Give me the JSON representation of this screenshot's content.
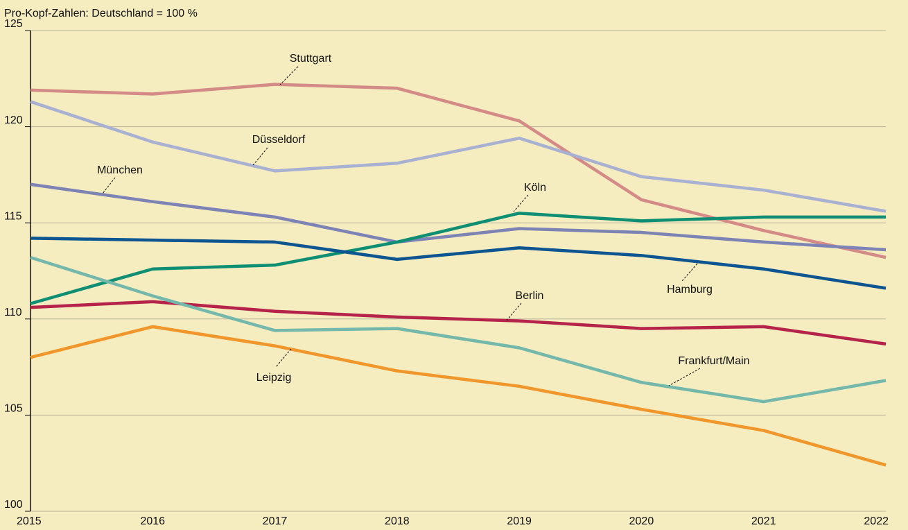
{
  "chart_data": {
    "type": "line",
    "title": "Pro-Kopf-Zahlen: Deutschland = 100 %",
    "categories": [
      "2015",
      "2016",
      "2017",
      "2018",
      "2019",
      "2020",
      "2021",
      "2022"
    ],
    "ylim": [
      100,
      125
    ],
    "yticks": [
      100,
      105,
      110,
      115,
      120,
      125
    ],
    "grid": true,
    "series": [
      {
        "name": "Stuttgart",
        "color": "#d48a87",
        "values": [
          121.9,
          121.7,
          122.2,
          122.0,
          120.3,
          116.2,
          114.6,
          113.2
        ]
      },
      {
        "name": "Düsseldorf",
        "color": "#a9b1d3",
        "values": [
          121.3,
          119.2,
          117.7,
          118.1,
          119.4,
          117.4,
          116.7,
          115.6
        ]
      },
      {
        "name": "München",
        "color": "#7d84b5",
        "values": [
          117.0,
          116.1,
          115.3,
          114.0,
          114.7,
          114.5,
          114.0,
          113.6
        ]
      },
      {
        "name": "Köln",
        "color": "#0e8f73",
        "values": [
          110.8,
          112.6,
          112.8,
          114.0,
          115.5,
          115.1,
          115.3,
          115.3
        ]
      },
      {
        "name": "Hamburg",
        "color": "#0c5590",
        "values": [
          114.2,
          114.1,
          114.0,
          113.1,
          113.7,
          113.3,
          112.6,
          111.6
        ]
      },
      {
        "name": "Berlin",
        "color": "#b5234b",
        "values": [
          110.6,
          110.9,
          110.4,
          110.1,
          109.9,
          109.5,
          109.6,
          108.7
        ]
      },
      {
        "name": "Frankfurt/Main",
        "color": "#74b8ac",
        "values": [
          113.2,
          111.2,
          109.4,
          109.5,
          108.5,
          106.7,
          105.7,
          106.8
        ]
      },
      {
        "name": "Leipzig",
        "color": "#f0962a",
        "values": [
          108.0,
          109.6,
          108.6,
          107.3,
          106.5,
          105.3,
          104.2,
          102.4
        ]
      }
    ]
  }
}
